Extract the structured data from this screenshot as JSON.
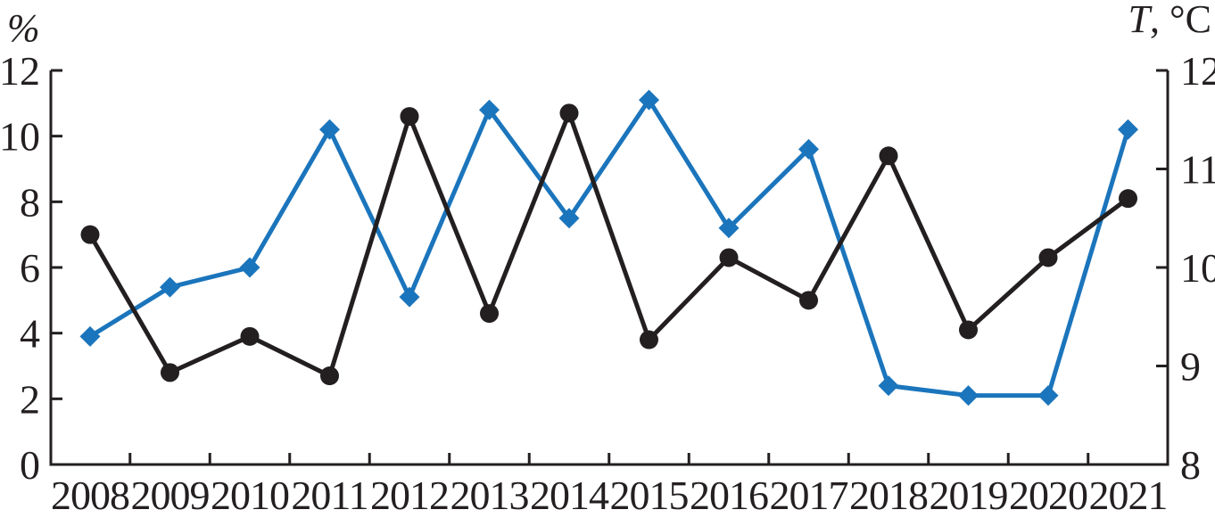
{
  "chart_data": {
    "type": "line",
    "title": "",
    "categories": [
      "2008",
      "2009",
      "2010",
      "2011",
      "2012",
      "2013",
      "2014",
      "2015",
      "2016",
      "2017",
      "2018",
      "2019",
      "2020",
      "2021"
    ],
    "left_axis": {
      "label": "%",
      "min": 0,
      "max": 12,
      "ticks": [
        0,
        2,
        4,
        6,
        8,
        10,
        12
      ]
    },
    "right_axis": {
      "label": "T, °C",
      "min": 8,
      "max": 12,
      "ticks": [
        8,
        9,
        10,
        11,
        12
      ]
    },
    "series": [
      {
        "name": "T, °C",
        "axis": "right",
        "color": "#1b75bc",
        "marker": "diamond",
        "values": [
          9.3,
          9.8,
          10.0,
          11.4,
          9.7,
          11.6,
          10.5,
          11.7,
          10.4,
          11.2,
          8.8,
          8.7,
          8.7,
          11.4
        ]
      },
      {
        "name": "%",
        "axis": "left",
        "color": "#231f20",
        "marker": "circle",
        "values": [
          7.0,
          2.8,
          3.9,
          2.7,
          10.6,
          4.6,
          10.7,
          3.8,
          6.3,
          5.0,
          9.4,
          4.1,
          6.3,
          8.1
        ]
      }
    ],
    "grid": false,
    "legend": "none",
    "background": "#ffffff",
    "axis_color": "#231f20"
  }
}
